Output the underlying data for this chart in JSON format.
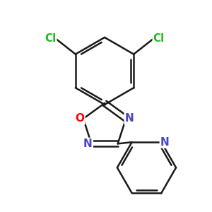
{
  "bg_color": "#ffffff",
  "bond_color": "#1a1a1a",
  "bond_width": 1.8,
  "atom_colors": {
    "O": "#ff0000",
    "N": "#4444cc",
    "Cl": "#22bb22",
    "C": "#1a1a1a"
  },
  "font_size_atom": 11
}
